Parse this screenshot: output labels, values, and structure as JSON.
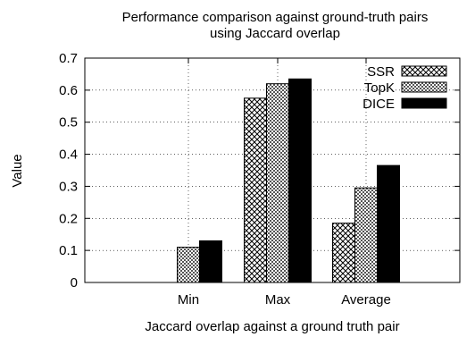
{
  "chart_data": {
    "type": "bar",
    "title_line1": "Performance comparison against ground-truth pairs",
    "title_line2": "using Jaccard overlap",
    "xlabel": "Jaccard overlap against a ground truth pair",
    "ylabel": "Value",
    "categories": [
      "Min",
      "Max",
      "Average"
    ],
    "series": [
      {
        "name": "SSR",
        "pattern": "crosshatch",
        "values": [
          0.0,
          0.575,
          0.185
        ]
      },
      {
        "name": "TopK",
        "pattern": "fine-checker",
        "values": [
          0.11,
          0.62,
          0.295
        ]
      },
      {
        "name": "DICE",
        "pattern": "solid",
        "values": [
          0.13,
          0.635,
          0.365
        ]
      }
    ],
    "ylim": [
      0,
      0.7
    ],
    "yticks": [
      "0",
      "0.1",
      "0.2",
      "0.3",
      "0.4",
      "0.5",
      "0.6",
      "0.7"
    ],
    "grid": true,
    "legend_position": "top-right"
  }
}
